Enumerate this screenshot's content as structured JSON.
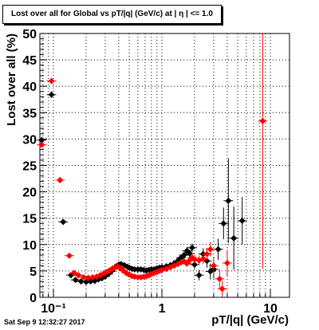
{
  "title": "Lost over all for Global vs pT/|q| (GeV/c) at |  η | <= 1.0",
  "timestamp": "Sat Sep  9 12:32:27 2017",
  "chart_data": {
    "type": "scatter",
    "xlabel": "pT/|q| (GeV/c)",
    "ylabel": "Lost over all (%)",
    "x_scale": "log",
    "xlim": [
      0.075,
      15
    ],
    "ylim": [
      0,
      50
    ],
    "x_tick_labels": [
      "10⁻¹",
      "1",
      "10"
    ],
    "y_tick_labels": [
      "0",
      "5",
      "10",
      "15",
      "20",
      "25",
      "30",
      "35",
      "40",
      "45",
      "50"
    ],
    "grid": true,
    "colors": {
      "black_series": "#000000",
      "red_series": "#ff0000"
    },
    "series": [
      {
        "color": "#000000",
        "points": [
          [
            0.078,
            29.8,
            0.5
          ],
          [
            0.096,
            38.4,
            0.6
          ],
          [
            0.123,
            14.3,
            0.5
          ],
          [
            0.145,
            4.2,
            0.3
          ],
          [
            0.16,
            3.3,
            0.3
          ],
          [
            0.18,
            3.0,
            0.3
          ],
          [
            0.2,
            2.9,
            0.3
          ],
          [
            0.22,
            3.0,
            0.3
          ],
          [
            0.24,
            3.1,
            0.3
          ],
          [
            0.26,
            3.4,
            0.3
          ],
          [
            0.28,
            3.6,
            0.3
          ],
          [
            0.3,
            4.0,
            0.3
          ],
          [
            0.32,
            4.4,
            0.3
          ],
          [
            0.34,
            4.9,
            0.3
          ],
          [
            0.36,
            5.4,
            0.3
          ],
          [
            0.38,
            5.9,
            0.3
          ],
          [
            0.4,
            6.2,
            0.3
          ],
          [
            0.42,
            6.3,
            0.3
          ],
          [
            0.45,
            6.1,
            0.3
          ],
          [
            0.48,
            5.8,
            0.3
          ],
          [
            0.5,
            5.6,
            0.3
          ],
          [
            0.53,
            5.4,
            0.3
          ],
          [
            0.56,
            5.3,
            0.3
          ],
          [
            0.6,
            5.3,
            0.3
          ],
          [
            0.64,
            5.3,
            0.3
          ],
          [
            0.68,
            5.2,
            0.3
          ],
          [
            0.72,
            5.1,
            0.3
          ],
          [
            0.76,
            5.2,
            0.3
          ],
          [
            0.8,
            5.3,
            0.4
          ],
          [
            0.85,
            5.3,
            0.4
          ],
          [
            0.9,
            5.5,
            0.4
          ],
          [
            0.95,
            5.6,
            0.4
          ],
          [
            1.0,
            5.7,
            0.4
          ],
          [
            1.1,
            5.9,
            0.4
          ],
          [
            1.2,
            6.1,
            0.4
          ],
          [
            1.3,
            6.4,
            0.5
          ],
          [
            1.4,
            6.9,
            0.5
          ],
          [
            1.5,
            7.5,
            0.5
          ],
          [
            1.6,
            8.0,
            0.6
          ],
          [
            1.7,
            8.8,
            0.7
          ],
          [
            1.8,
            8.3,
            0.7
          ],
          [
            1.9,
            9.4,
            0.8
          ],
          [
            2.0,
            6.2,
            0.8
          ],
          [
            2.2,
            4.2,
            1.0
          ],
          [
            2.4,
            8.2,
            1.1
          ],
          [
            2.6,
            6.9,
            1.3
          ],
          [
            2.8,
            4.9,
            1.5
          ],
          [
            3.0,
            5.3,
            1.7
          ],
          [
            3.3,
            9.1,
            2.0
          ],
          [
            3.7,
            14.0,
            3.0
          ],
          [
            4.1,
            18.3,
            8.0
          ],
          [
            4.6,
            11.2,
            6.0
          ],
          [
            5.5,
            14.5,
            4.5
          ]
        ]
      },
      {
        "color": "#ff0000",
        "points": [
          [
            0.078,
            28.9,
            0.5
          ],
          [
            0.096,
            41.0,
            0.6
          ],
          [
            0.115,
            22.2,
            0.6
          ],
          [
            0.14,
            7.9,
            0.4
          ],
          [
            0.155,
            4.6,
            0.3
          ],
          [
            0.17,
            4.2,
            0.3
          ],
          [
            0.19,
            3.8,
            0.3
          ],
          [
            0.21,
            3.7,
            0.3
          ],
          [
            0.23,
            3.8,
            0.3
          ],
          [
            0.25,
            3.9,
            0.3
          ],
          [
            0.27,
            4.2,
            0.3
          ],
          [
            0.29,
            4.5,
            0.3
          ],
          [
            0.31,
            4.8,
            0.3
          ],
          [
            0.33,
            5.1,
            0.3
          ],
          [
            0.35,
            5.4,
            0.3
          ],
          [
            0.37,
            5.7,
            0.3
          ],
          [
            0.39,
            5.9,
            0.3
          ],
          [
            0.41,
            5.6,
            0.3
          ],
          [
            0.44,
            5.1,
            0.3
          ],
          [
            0.47,
            4.6,
            0.3
          ],
          [
            0.5,
            4.3,
            0.3
          ],
          [
            0.53,
            4.0,
            0.3
          ],
          [
            0.56,
            3.9,
            0.3
          ],
          [
            0.6,
            3.8,
            0.3
          ],
          [
            0.64,
            3.8,
            0.3
          ],
          [
            0.68,
            3.9,
            0.3
          ],
          [
            0.72,
            4.0,
            0.3
          ],
          [
            0.76,
            4.2,
            0.3
          ],
          [
            0.8,
            4.4,
            0.4
          ],
          [
            0.85,
            4.6,
            0.4
          ],
          [
            0.9,
            4.8,
            0.4
          ],
          [
            0.95,
            5.0,
            0.4
          ],
          [
            1.0,
            5.2,
            0.4
          ],
          [
            1.1,
            5.4,
            0.4
          ],
          [
            1.2,
            5.7,
            0.4
          ],
          [
            1.3,
            6.0,
            0.5
          ],
          [
            1.4,
            6.3,
            0.5
          ],
          [
            1.5,
            6.6,
            0.5
          ],
          [
            1.6,
            6.8,
            0.6
          ],
          [
            1.7,
            6.4,
            0.6
          ],
          [
            1.8,
            7.0,
            0.7
          ],
          [
            1.9,
            7.5,
            0.7
          ],
          [
            2.0,
            7.2,
            0.8
          ],
          [
            2.2,
            7.0,
            0.9
          ],
          [
            2.4,
            7.3,
            1.0
          ],
          [
            2.6,
            8.2,
            1.2
          ],
          [
            2.8,
            9.1,
            1.4
          ],
          [
            3.0,
            6.0,
            1.6
          ],
          [
            3.4,
            3.5,
            1.8
          ],
          [
            3.6,
            1.6,
            1.5
          ],
          [
            4.0,
            6.5,
            2.5
          ],
          [
            8.5,
            33.4,
            28.0
          ]
        ]
      }
    ]
  }
}
